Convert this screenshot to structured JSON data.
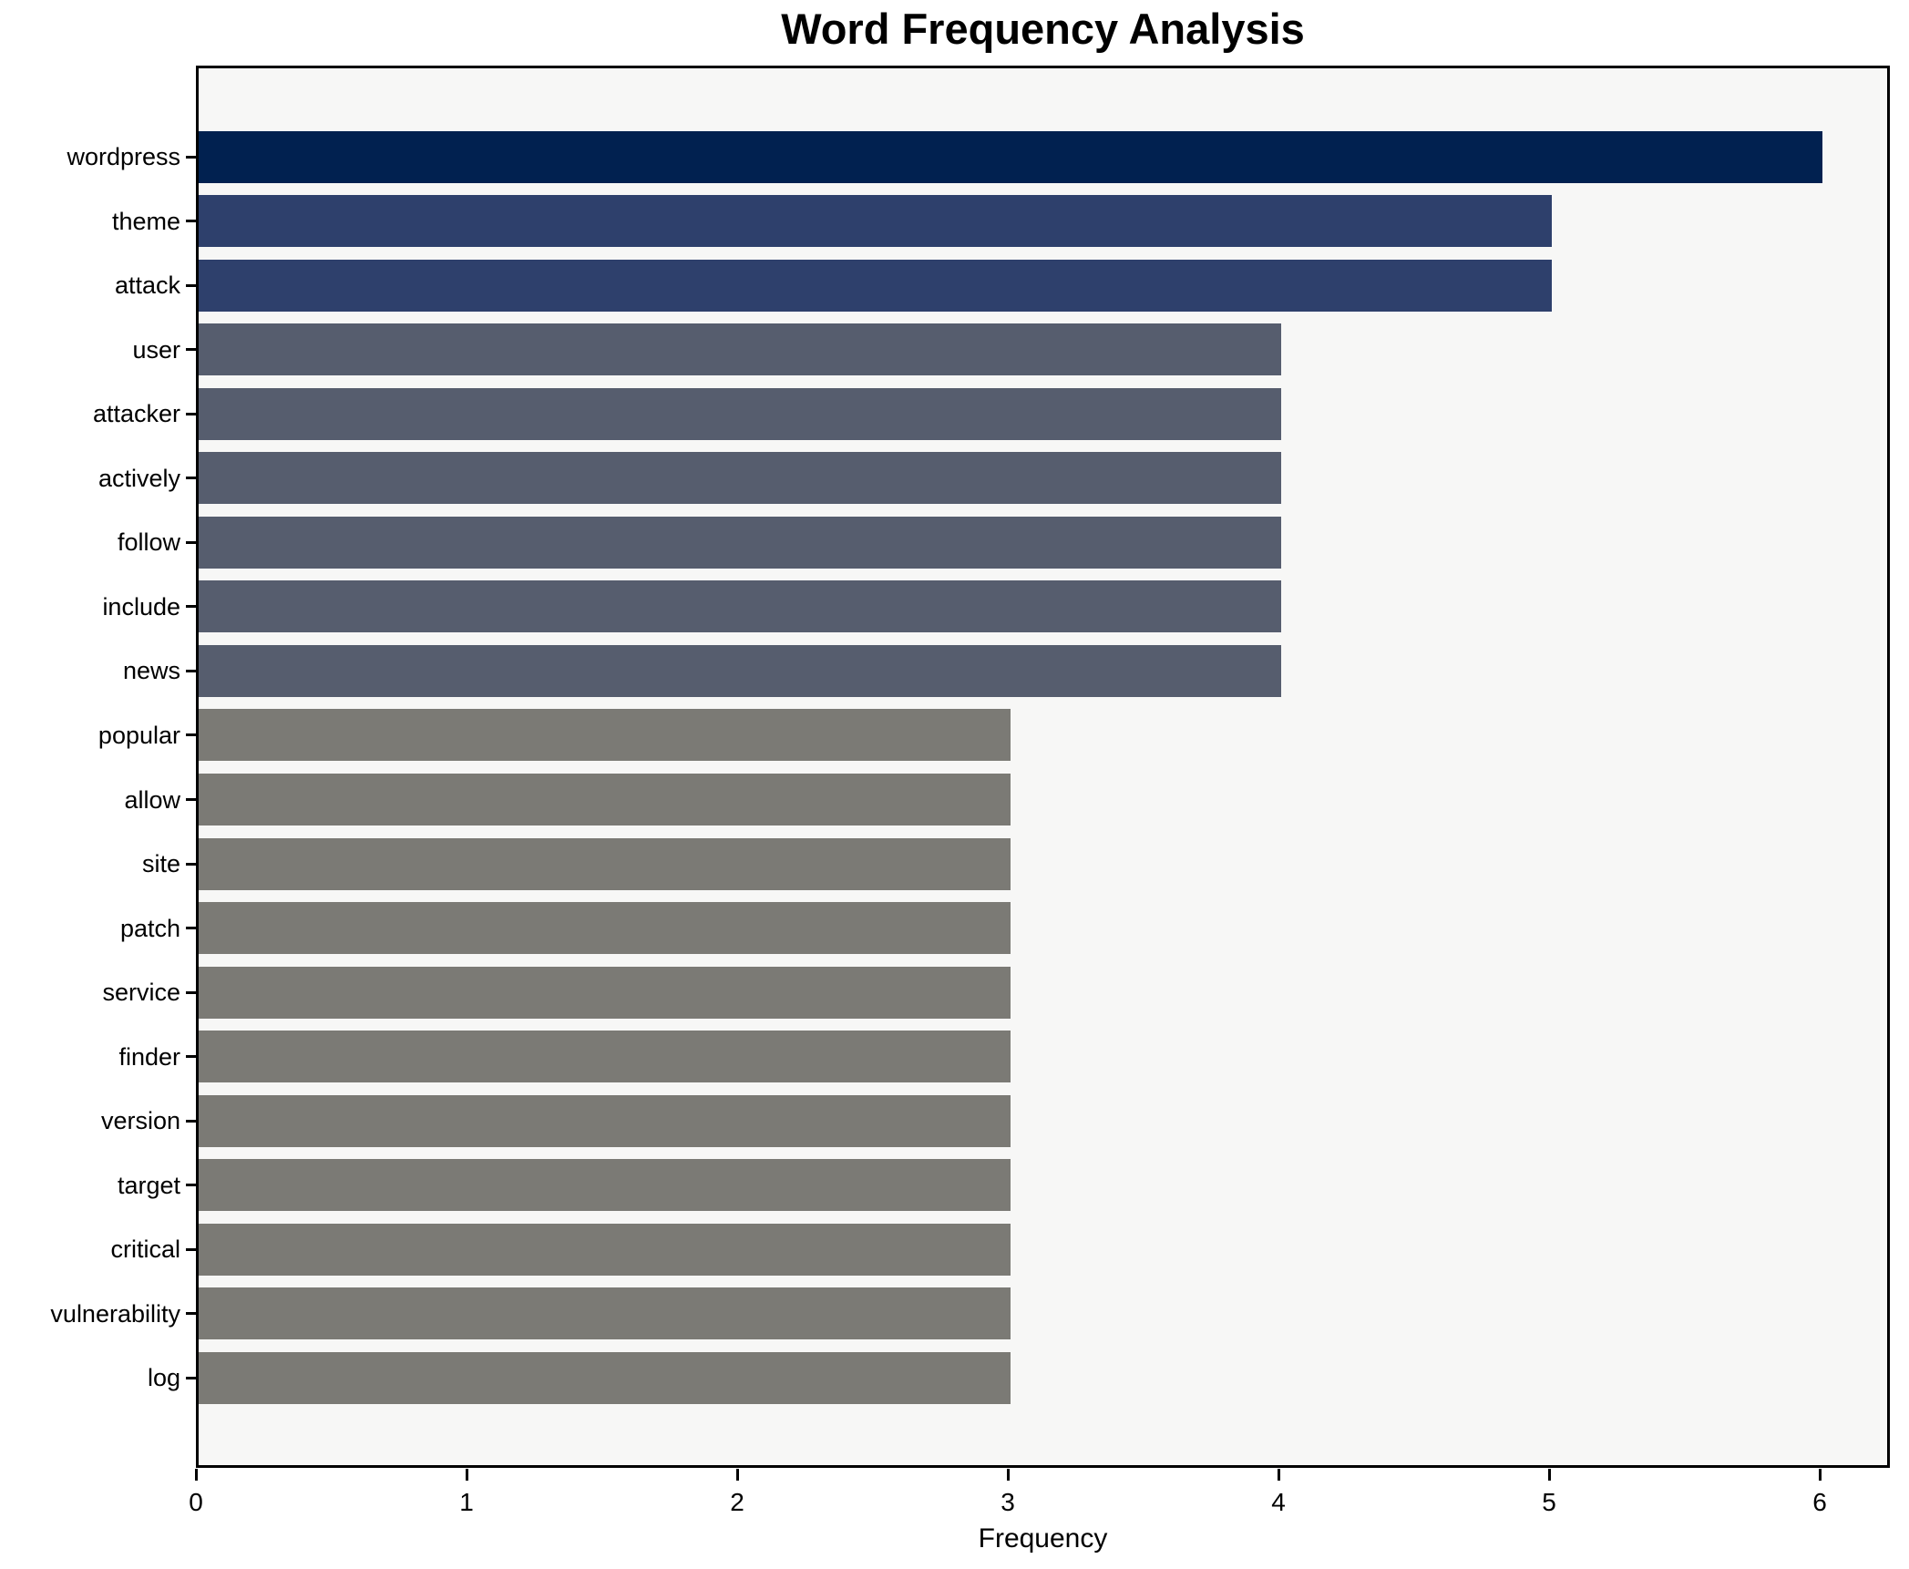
{
  "chart_data": {
    "type": "bar",
    "orientation": "horizontal",
    "title": "Word Frequency Analysis",
    "xlabel": "Frequency",
    "ylabel": "",
    "categories": [
      "wordpress",
      "theme",
      "attack",
      "user",
      "attacker",
      "actively",
      "follow",
      "include",
      "news",
      "popular",
      "allow",
      "site",
      "patch",
      "service",
      "finder",
      "version",
      "target",
      "critical",
      "vulnerability",
      "log"
    ],
    "values": [
      6,
      5,
      5,
      4,
      4,
      4,
      4,
      4,
      4,
      3,
      3,
      3,
      3,
      3,
      3,
      3,
      3,
      3,
      3,
      3
    ],
    "bar_colors": [
      "#012150",
      "#2e406c",
      "#2e406c",
      "#565d6e",
      "#565d6e",
      "#565d6e",
      "#565d6e",
      "#565d6e",
      "#565d6e",
      "#7b7a75",
      "#7b7a75",
      "#7b7a75",
      "#7b7a75",
      "#7b7a75",
      "#7b7a75",
      "#7b7a75",
      "#7b7a75",
      "#7b7a75",
      "#7b7a75",
      "#7b7a75"
    ],
    "xlim": [
      0,
      6.26
    ],
    "x_ticks": [
      "0",
      "1",
      "2",
      "3",
      "4",
      "5",
      "6"
    ],
    "grid": false,
    "legend": false,
    "plot_background": "#f7f7f6",
    "figure_background": "#ffffff",
    "axis_color": "#000000"
  }
}
